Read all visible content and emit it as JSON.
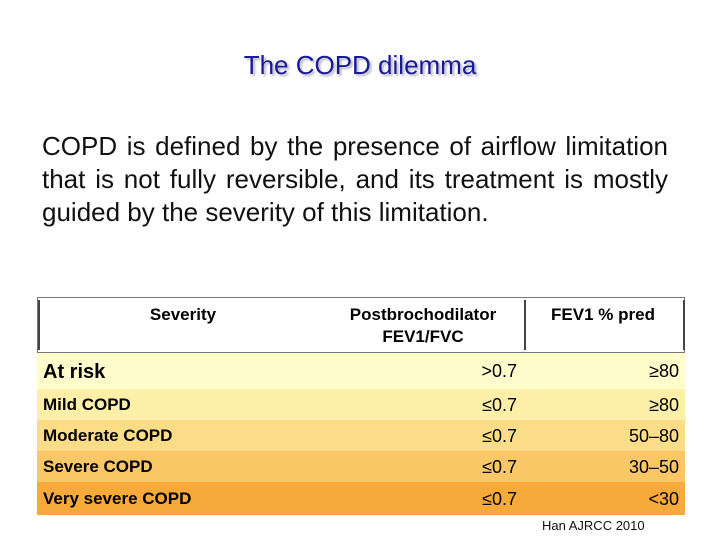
{
  "title": "The COPD dilemma",
  "body_text": "COPD is defined by the presence of airflow limitation that is not fully reversible, and its treatment is mostly guided by the severity of this limitation.",
  "table": {
    "headers": {
      "severity": "Severity",
      "ratio_line1": "Postbrochodilator",
      "ratio_line2": "FEV1/FVC",
      "fev": "FEV1 % pred"
    },
    "rows": [
      {
        "name": "At risk",
        "ratio": ">0.7",
        "fev": "≥80",
        "color": "#fffccc"
      },
      {
        "name": "Mild COPD",
        "ratio": "≤0.7",
        "fev": "≥80",
        "color": "#fdeea8"
      },
      {
        "name": "Moderate COPD",
        "ratio": "≤0.7",
        "fev": "50–80",
        "color": "#fbdd88"
      },
      {
        "name": "Severe COPD",
        "ratio": "≤0.7",
        "fev": "30–50",
        "color": "#f9c766"
      },
      {
        "name": "Very severe COPD",
        "ratio": "≤0.7",
        "fev": "<30",
        "color": "#f7a93a"
      }
    ]
  },
  "source": "Han AJRCC 2010"
}
